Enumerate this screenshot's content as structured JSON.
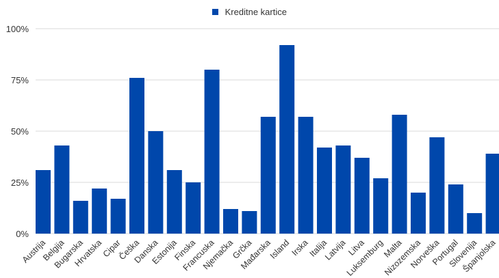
{
  "colors": {
    "bar": "#0047AB",
    "grid": "#d9d9d9",
    "axis_text": "#333333"
  },
  "chart_data": {
    "type": "bar",
    "title": "",
    "xlabel": "",
    "ylabel": "",
    "ylim": [
      0,
      100
    ],
    "yticks": [
      0,
      25,
      50,
      75,
      100
    ],
    "ytick_labels": [
      "0%",
      "25%",
      "50%",
      "75%",
      "100%"
    ],
    "grid": true,
    "legend_position": "top-center",
    "categories": [
      "Austrija",
      "Belgija",
      "Bugarska",
      "Hrvatska",
      "Cipar",
      "Češka",
      "Danska",
      "Estonija",
      "Finska",
      "Francuska",
      "Njemačka",
      "Grčka",
      "Mađarska",
      "Island",
      "Irska",
      "Italija",
      "Latvija",
      "Litva",
      "Luksemburg",
      "Malta",
      "Nizozemska",
      "Norveška",
      "Portugal",
      "Slovenija",
      "Španjolska"
    ],
    "series": [
      {
        "name": "Kreditne kartice",
        "values": [
          31,
          43,
          16,
          22,
          17,
          76,
          50,
          31,
          25,
          80,
          12,
          11,
          57,
          92,
          57,
          42,
          43,
          37,
          27,
          58,
          20,
          47,
          24,
          10,
          39
        ]
      }
    ]
  }
}
